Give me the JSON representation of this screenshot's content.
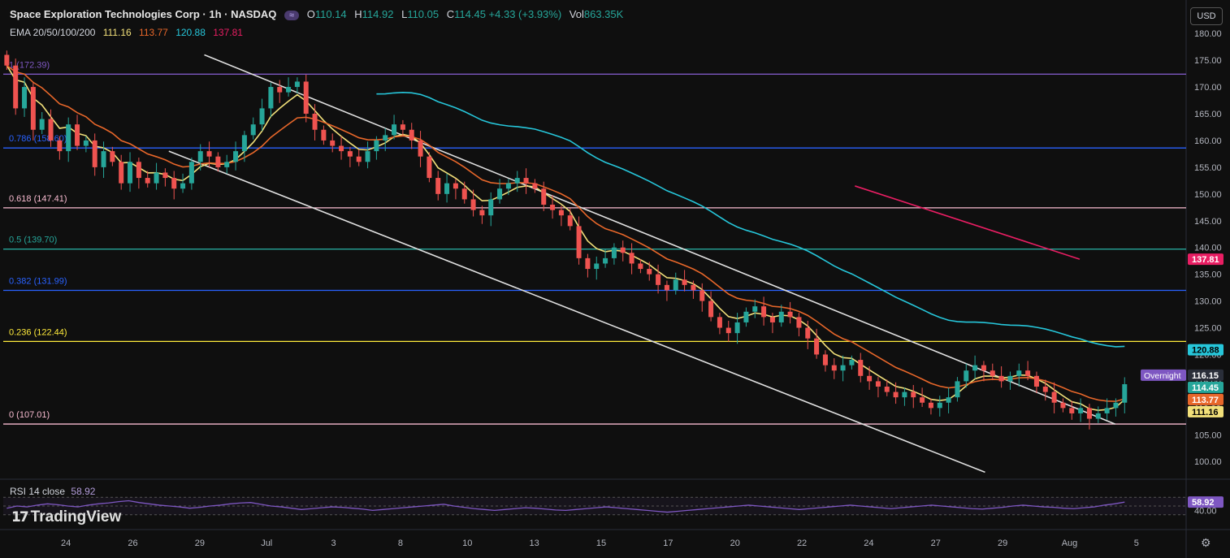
{
  "header": {
    "symbol": "Space Exploration Technologies Corp · 1h · NASDAQ",
    "badge": "≈",
    "o_label": "O",
    "o": "110.14",
    "h_label": "H",
    "h": "114.92",
    "l_label": "L",
    "l": "110.05",
    "c_label": "C",
    "c": "114.45",
    "chg": "+4.33 (+3.93%)",
    "vol_label": "Vol",
    "vol": "863.35K"
  },
  "ema_legend": {
    "label": "EMA 20/50/100/200",
    "ema20": "111.16",
    "ema50": "113.77",
    "ema100": "120.88",
    "ema200": "137.81"
  },
  "currency": "USD",
  "rsi_legend": {
    "label": "RSI 14 close",
    "value": "58.92"
  },
  "logo": "TradingView",
  "colors": {
    "up": "#26a69a",
    "down": "#ef5350",
    "ema20": "#f2e07a",
    "ema50": "#e8672a",
    "ema100": "#26c6da",
    "ema200": "#e91e63",
    "rsi": "#7e57c2",
    "channel": "#e0e0e0"
  },
  "chart_data": {
    "type": "candlestick",
    "y_axis": {
      "min": 97,
      "max": 182,
      "ticks": [
        "180.00",
        "175.00",
        "170.00",
        "165.00",
        "160.00",
        "155.00",
        "150.00",
        "145.00",
        "140.00",
        "135.00",
        "130.00",
        "125.00",
        "120.00",
        "115.00",
        "110.00",
        "105.00",
        "100.00"
      ]
    },
    "x_ticks": [
      "24",
      "26",
      "29",
      "Jul",
      "3",
      "8",
      "10",
      "13",
      "15",
      "17",
      "20",
      "22",
      "24",
      "27",
      "29",
      "Aug",
      "5"
    ],
    "fib_levels": [
      {
        "label": "1 (172.39)",
        "value": 172.39,
        "color": "#7e57c2"
      },
      {
        "label": "0.786 (158.60)",
        "value": 158.6,
        "color": "#2962ff"
      },
      {
        "label": "0.618 (147.41)",
        "value": 147.41,
        "color": "#f8bbd0"
      },
      {
        "label": "0.5 (139.70)",
        "value": 139.7,
        "color": "#26a69a"
      },
      {
        "label": "0.382 (131.99)",
        "value": 131.99,
        "color": "#2962ff"
      },
      {
        "label": "0.236 (122.44)",
        "value": 122.44,
        "color": "#ffeb3b"
      },
      {
        "label": "0 (107.01)",
        "value": 107.01,
        "color": "#f8bbd0"
      }
    ],
    "price_tags": [
      {
        "value": "137.81",
        "price": 137.81,
        "bg": "#e91e63",
        "fg": "#ffffff"
      },
      {
        "value": "120.88",
        "price": 120.88,
        "bg": "#26c6da",
        "fg": "#000000"
      },
      {
        "value": "116.15",
        "price": 116.15,
        "bg": "#2a2e39",
        "fg": "#ffffff",
        "tag": "Overnight"
      },
      {
        "value": "114.45",
        "price": 114.45,
        "bg": "#26a69a",
        "fg": "#ffffff"
      },
      {
        "value": "113.77",
        "price": 113.77,
        "bg": "#e8672a",
        "fg": "#ffffff"
      },
      {
        "value": "111.16",
        "price": 111.16,
        "bg": "#f2e07a",
        "fg": "#000000"
      }
    ],
    "channel_upper": [
      [
        0.17,
        176
      ],
      [
        0.94,
        107
      ]
    ],
    "channel_lower": [
      [
        0.14,
        158
      ],
      [
        0.83,
        98
      ]
    ],
    "ema200_line": [
      [
        0.72,
        151.5
      ],
      [
        0.91,
        137.81
      ]
    ],
    "closes": [
      174,
      166,
      170,
      162,
      164,
      160,
      158,
      163,
      159,
      160,
      155,
      158,
      156,
      152,
      156,
      153,
      152,
      154,
      153,
      151,
      152,
      156,
      158,
      157,
      155,
      156,
      158,
      161,
      163,
      166,
      170,
      169,
      170,
      171,
      165,
      162,
      160,
      159,
      158,
      157,
      156,
      158,
      160,
      161,
      163,
      162,
      160,
      157,
      153,
      150,
      152,
      151,
      149,
      147,
      146,
      149,
      151,
      152,
      153,
      152,
      151,
      148,
      147,
      146,
      144,
      138,
      136,
      137,
      138,
      140,
      139,
      137,
      136,
      135,
      133,
      132,
      134,
      133,
      132,
      130,
      127,
      125,
      124,
      126,
      128,
      129,
      127,
      126,
      128,
      127,
      125,
      123,
      120,
      118,
      117,
      118,
      119,
      116,
      115,
      114,
      113,
      112,
      113,
      112,
      111,
      110,
      111,
      112,
      115,
      117,
      118,
      117,
      116,
      115,
      116,
      117,
      116,
      114,
      113,
      111,
      110,
      109,
      110,
      108,
      109,
      110,
      111,
      114.45
    ],
    "rsi_values": [
      45,
      50,
      48,
      52,
      55,
      53,
      50,
      48,
      52,
      55,
      57,
      60,
      62,
      58,
      55,
      52,
      50,
      48,
      45,
      47,
      50,
      52,
      55,
      57,
      58,
      54,
      50,
      48,
      45,
      42,
      44,
      46,
      48,
      47,
      45,
      43,
      40,
      42,
      44,
      46,
      48,
      50,
      52,
      54,
      50,
      47,
      44,
      42,
      40,
      42,
      44,
      46,
      45,
      43,
      41,
      40,
      42,
      44,
      46,
      48,
      46,
      44,
      42,
      40,
      38,
      36,
      38,
      40,
      42,
      44,
      46,
      48,
      50,
      52,
      50,
      48,
      46,
      44,
      42,
      44,
      46,
      48,
      50,
      52,
      50,
      48,
      46,
      44,
      46,
      48,
      50,
      52,
      50,
      48,
      46,
      44,
      43,
      45,
      47,
      50,
      52,
      50,
      48,
      47,
      45,
      44,
      46,
      48,
      52,
      55,
      58.92
    ],
    "rsi_band": [
      30,
      70
    ]
  }
}
